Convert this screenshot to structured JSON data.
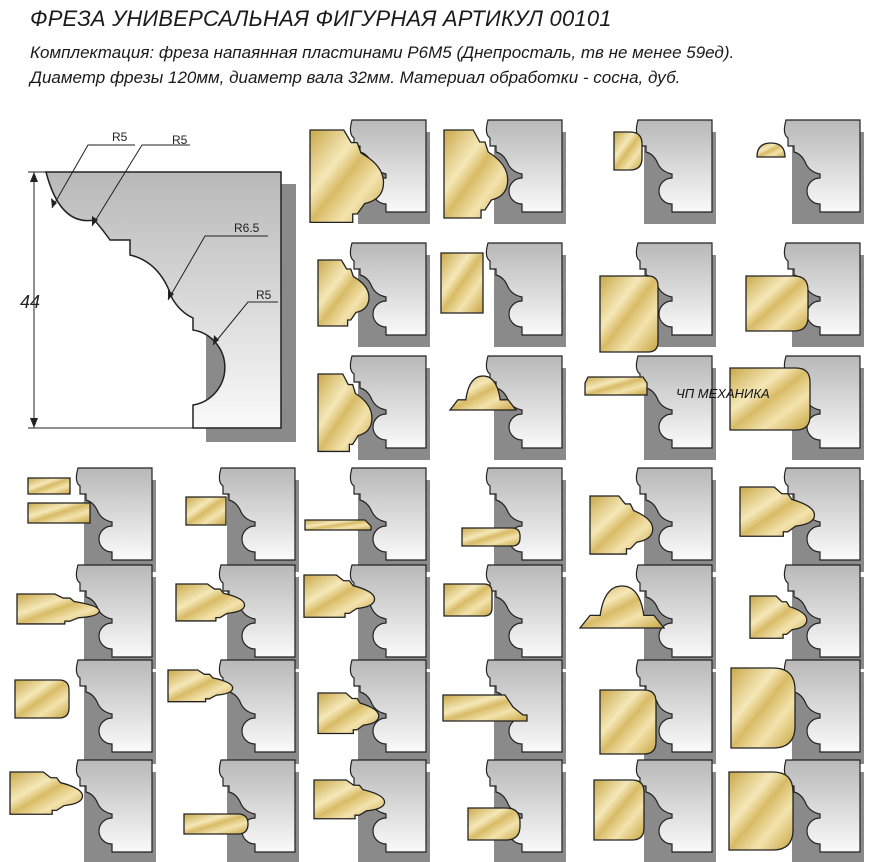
{
  "header": {
    "title": "ФРЕЗА УНИВЕРСАЛЬНАЯ ФИГУРНАЯ АРТИКУЛ 00101",
    "line1": "Комплектация: фреза напаянная пластинами Р6М5 (Днепросталь, тв не менее 59ед).",
    "line2": "Диаметр фрезы 120мм, диаметр вала 32мм. Материал обработки - сосна, дуб."
  },
  "main_profile": {
    "height_label": "44",
    "radius_labels": [
      "R5",
      "R5",
      "R6.5",
      "R5"
    ]
  },
  "watermark": "ЧП МЕХАНИКА",
  "colors": {
    "cutter_light": "#f4f4f4",
    "cutter_dark": "#b9b9b9",
    "cutter_shadow": "#8a8a8a",
    "wood_light": "#f3e5b6",
    "wood_dark": "#c9a84a"
  }
}
